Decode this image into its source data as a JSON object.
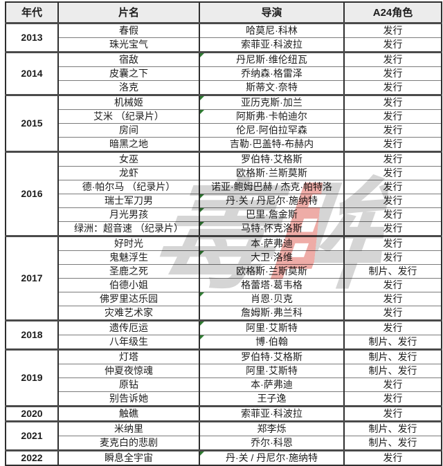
{
  "table": {
    "header": {
      "year": "年代",
      "title": "片名",
      "director": "导演",
      "role": "A24角色"
    },
    "groups": [
      {
        "year": "2013",
        "films": [
          {
            "title": "春假",
            "director": "哈莫尼·科林",
            "role": "发行",
            "marker": false
          },
          {
            "title": "珠光宝气",
            "director": "索菲亚·科波拉",
            "role": "发行",
            "marker": false
          }
        ]
      },
      {
        "year": "2014",
        "films": [
          {
            "title": "宿敌",
            "director": "丹尼斯·维伦纽瓦",
            "role": "发行",
            "marker": true
          },
          {
            "title": "皮囊之下",
            "director": "乔纳森·格雷泽",
            "role": "发行",
            "marker": false
          },
          {
            "title": "洛克",
            "director": "斯蒂文·奈特",
            "role": "发行",
            "marker": false
          }
        ]
      },
      {
        "year": "2015",
        "films": [
          {
            "title": "机械姬",
            "director": "亚历克斯·加兰",
            "role": "发行",
            "marker": true
          },
          {
            "title": "艾米 （纪录片）",
            "director": "阿斯弗·卡帕迪尔",
            "role": "发行",
            "marker": true
          },
          {
            "title": "房间",
            "director": "伦尼·阿伯拉罕森",
            "role": "发行",
            "marker": false
          },
          {
            "title": "暗黑之地",
            "director": "吉勒·巴盖特-布赫内",
            "role": "发行",
            "marker": false
          }
        ]
      },
      {
        "year": "2016",
        "films": [
          {
            "title": "女巫",
            "director": "罗伯特·艾格斯",
            "role": "发行",
            "marker": false
          },
          {
            "title": "龙虾",
            "director": "欧格斯·兰斯莫斯",
            "role": "发行",
            "marker": false
          },
          {
            "title": "德·帕尔马 （纪录片）",
            "director": "诺亚·鲍姆巴赫 / 杰克·帕特洛",
            "role": "发行",
            "marker": false
          },
          {
            "title": "瑞士军刀男",
            "director": "丹·关 / 丹尼尔·施纳特",
            "role": "发行",
            "marker": true
          },
          {
            "title": "月光男孩",
            "director": "巴里·詹金斯",
            "role": "发行",
            "marker": true
          },
          {
            "title": "绿洲：超音速 （纪录片）",
            "director": "马特·怀克洛斯",
            "role": "发行",
            "marker": true
          }
        ]
      },
      {
        "year": "2017",
        "films": [
          {
            "title": "好时光",
            "director": "本·萨弗迪",
            "role": "发行",
            "marker": false
          },
          {
            "title": "鬼魅浮生",
            "director": "大卫·洛维",
            "role": "发行",
            "marker": true
          },
          {
            "title": "圣鹿之死",
            "director": "欧格斯·兰斯莫斯",
            "role": "制片、发行",
            "marker": false
          },
          {
            "title": "伯德小姐",
            "director": "格蕾塔·葛韦格",
            "role": "发行",
            "marker": false
          },
          {
            "title": "佛罗里达乐园",
            "director": "肖恩·贝克",
            "role": "发行",
            "marker": true
          },
          {
            "title": "灾难艺术家",
            "director": "詹姆斯·弗兰科",
            "role": "发行",
            "marker": false
          }
        ]
      },
      {
        "year": "2018",
        "films": [
          {
            "title": "遗传厄运",
            "director": "阿里·艾斯特",
            "role": "发行",
            "marker": true
          },
          {
            "title": "八年级生",
            "director": "博·伯翰",
            "role": "制片、发行",
            "marker": true
          }
        ]
      },
      {
        "year": "2019",
        "films": [
          {
            "title": "灯塔",
            "director": "罗伯特·艾格斯",
            "role": "制片、发行",
            "marker": false
          },
          {
            "title": "仲夏夜惊魂",
            "director": "阿里·艾斯特",
            "role": "制片、发行",
            "marker": false
          },
          {
            "title": "原钻",
            "director": "本·萨弗迪",
            "role": "发行",
            "marker": false
          },
          {
            "title": "别告诉她",
            "director": "王子逸",
            "role": "发行",
            "marker": false
          }
        ]
      },
      {
        "year": "2020",
        "films": [
          {
            "title": "触礁",
            "director": "索菲亚·科波拉",
            "role": "发行",
            "marker": false
          }
        ]
      },
      {
        "year": "2021",
        "films": [
          {
            "title": "米纳里",
            "director": "郑李烁",
            "role": "制片、发行",
            "marker": false
          },
          {
            "title": "麦克白的悲剧",
            "director": "乔尔·科恩",
            "role": "制片、发行",
            "marker": false
          }
        ]
      },
      {
        "year": "2022",
        "films": [
          {
            "title": "瞬息全宇宙",
            "director": "丹·关 / 丹尼尔·施纳特",
            "role": "发行",
            "marker": true
          }
        ]
      }
    ]
  },
  "watermark": {
    "char_left": "毒",
    "char_right": "眸",
    "gray": "#9a9a9a",
    "red": "#d6392c"
  }
}
